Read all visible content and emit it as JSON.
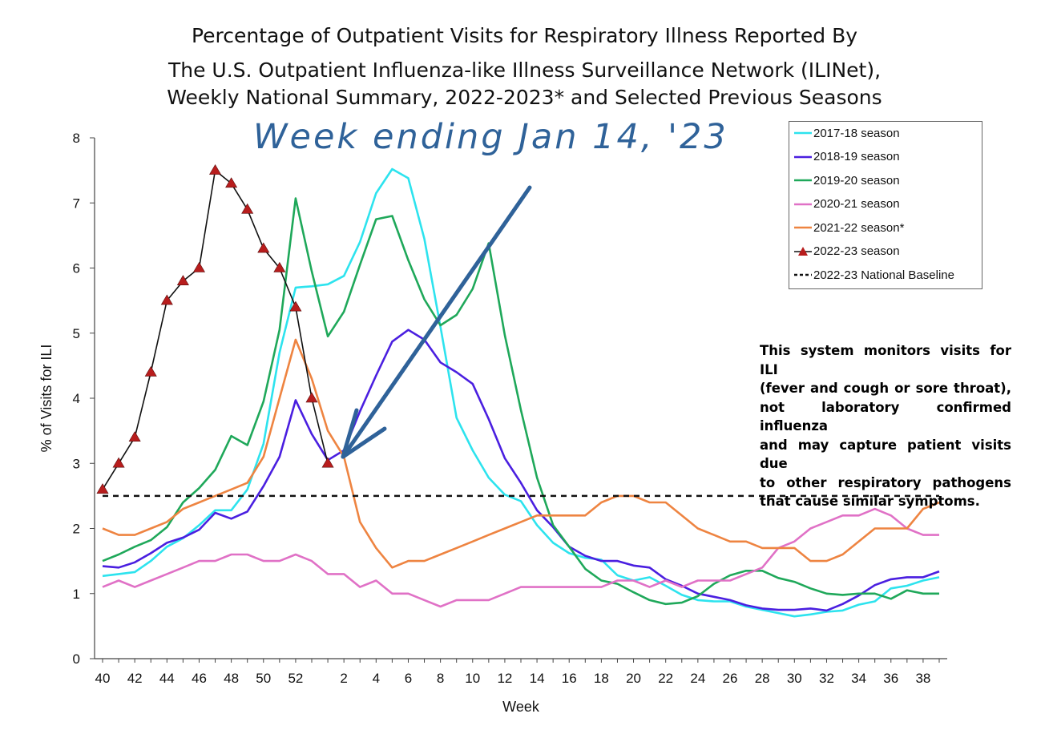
{
  "title_lines": [
    "Percentage of Outpatient Visits for Respiratory Illness Reported By",
    "The U.S. Outpatient Influenza-like Illness Surveillance Network (ILINet),",
    "Weekly National Summary, 2022-2023* and Selected Previous Seasons"
  ],
  "annotation": "Week ending Jan 14, '23",
  "note_lines": [
    "This system monitors visits for ILI",
    "(fever and cough or sore throat),",
    "not laboratory confirmed influenza",
    "and may capture patient visits due",
    "to other respiratory pathogens",
    "that cause similar symptoms."
  ],
  "colors": {
    "s2017": "#2de3ee",
    "s2018": "#4a1fe0",
    "s2019": "#1fa85a",
    "s2020": "#e071c6",
    "s2021": "#ee8441",
    "s2022": "#111111",
    "s2022_marker": "#b81d1d",
    "baseline": "#111111",
    "annotation": "#2f6299"
  },
  "chart_data": {
    "type": "line",
    "title": "Percentage of Outpatient Visits for Respiratory Illness Reported By The U.S. Outpatient Influenza-like Illness Surveillance Network (ILINet), Weekly National Summary, 2022-2023* and Selected Previous Seasons",
    "xlabel": "Week",
    "ylabel": "% of Visits for ILI",
    "ylim": [
      0,
      8
    ],
    "yticks": [
      0,
      1,
      2,
      3,
      4,
      5,
      6,
      7,
      8
    ],
    "x_tick_labels": [
      "40",
      "42",
      "44",
      "46",
      "48",
      "50",
      "52",
      "2",
      "4",
      "6",
      "8",
      "10",
      "12",
      "14",
      "16",
      "18",
      "20",
      "22",
      "24",
      "26",
      "28",
      "30",
      "32",
      "34",
      "36",
      "38"
    ],
    "x_weeks": [
      40,
      41,
      42,
      43,
      44,
      45,
      46,
      47,
      48,
      49,
      50,
      51,
      52,
      53,
      1,
      2,
      3,
      4,
      5,
      6,
      7,
      8,
      9,
      10,
      11,
      12,
      13,
      14,
      15,
      16,
      17,
      18,
      19,
      20,
      21,
      22,
      23,
      24,
      25,
      26,
      27,
      28,
      29,
      30,
      31,
      32,
      33,
      34,
      35,
      36,
      37,
      38,
      39
    ],
    "grid": false,
    "legend_position": "top-right",
    "series": [
      {
        "name": "2017-18 season",
        "color_key": "s2017",
        "values": [
          1.27,
          1.3,
          1.33,
          1.5,
          1.72,
          1.85,
          2.05,
          2.28,
          2.28,
          2.6,
          3.3,
          4.7,
          5.7,
          5.72,
          5.75,
          5.88,
          6.4,
          7.15,
          7.52,
          7.38,
          6.45,
          5.1,
          3.7,
          3.2,
          2.78,
          2.52,
          2.42,
          2.05,
          1.78,
          1.62,
          1.55,
          1.52,
          1.28,
          1.2,
          1.25,
          1.12,
          0.98,
          0.9,
          0.88,
          0.88,
          0.8,
          0.75,
          0.7,
          0.65,
          0.68,
          0.72,
          0.74,
          0.83,
          0.88,
          1.08,
          1.12,
          1.2,
          1.25
        ]
      },
      {
        "name": "2018-19 season",
        "color_key": "s2018",
        "values": [
          1.42,
          1.4,
          1.48,
          1.62,
          1.78,
          1.86,
          1.98,
          2.24,
          2.15,
          2.26,
          2.65,
          3.1,
          3.97,
          3.45,
          3.05,
          3.2,
          3.8,
          4.35,
          4.87,
          5.05,
          4.9,
          4.55,
          4.4,
          4.22,
          3.68,
          3.08,
          2.7,
          2.28,
          2.02,
          1.72,
          1.58,
          1.5,
          1.5,
          1.43,
          1.4,
          1.22,
          1.12,
          1.0,
          0.95,
          0.9,
          0.82,
          0.77,
          0.75,
          0.75,
          0.77,
          0.74,
          0.84,
          0.97,
          1.13,
          1.22,
          1.25,
          1.25,
          1.34
        ]
      },
      {
        "name": "2019-20 season",
        "color_key": "s2019",
        "values": [
          1.5,
          1.6,
          1.72,
          1.82,
          2.02,
          2.4,
          2.62,
          2.9,
          3.42,
          3.28,
          3.95,
          5.05,
          7.07,
          5.95,
          4.95,
          5.33,
          6.05,
          6.75,
          6.8,
          6.12,
          5.52,
          5.12,
          5.28,
          5.68,
          6.38,
          4.97,
          3.82,
          2.78,
          2.05,
          1.72,
          1.38,
          1.2,
          1.15,
          1.02,
          0.9,
          0.84,
          0.86,
          0.96,
          1.15,
          1.28,
          1.35,
          1.35,
          1.24,
          1.18,
          1.08,
          1.0,
          0.98,
          1.0,
          1.0,
          0.92,
          1.05,
          1.0,
          1.0
        ]
      },
      {
        "name": "2020-21 season",
        "color_key": "s2020",
        "values": [
          1.1,
          1.2,
          1.1,
          1.2,
          1.3,
          1.4,
          1.5,
          1.5,
          1.6,
          1.6,
          1.5,
          1.5,
          1.6,
          1.5,
          1.3,
          1.3,
          1.1,
          1.2,
          1.0,
          1.0,
          0.9,
          0.8,
          0.9,
          0.9,
          0.9,
          1.0,
          1.1,
          1.1,
          1.1,
          1.1,
          1.1,
          1.1,
          1.2,
          1.2,
          1.1,
          1.2,
          1.1,
          1.2,
          1.2,
          1.2,
          1.3,
          1.4,
          1.7,
          1.8,
          2.0,
          2.1,
          2.2,
          2.2,
          2.3,
          2.2,
          2.0,
          1.9,
          1.9
        ]
      },
      {
        "name": "2021-22 season*",
        "color_key": "s2021",
        "values": [
          2.0,
          1.9,
          1.9,
          2.0,
          2.1,
          2.3,
          2.4,
          2.5,
          2.6,
          2.7,
          3.1,
          4.0,
          4.9,
          4.3,
          3.5,
          3.1,
          2.1,
          1.7,
          1.4,
          1.5,
          1.5,
          1.6,
          1.7,
          1.8,
          1.9,
          2.0,
          2.1,
          2.2,
          2.2,
          2.2,
          2.2,
          2.4,
          2.5,
          2.5,
          2.4,
          2.4,
          2.2,
          2.0,
          1.9,
          1.8,
          1.8,
          1.7,
          1.7,
          1.7,
          1.5,
          1.5,
          1.6,
          1.8,
          2.0,
          2.0,
          2.0,
          2.3,
          2.4
        ]
      },
      {
        "name": "2022-23 season",
        "color_key": "s2022",
        "marker": "triangle",
        "values": [
          2.6,
          3.0,
          3.4,
          4.4,
          5.5,
          5.8,
          6.0,
          7.5,
          7.3,
          6.9,
          6.3,
          6.0,
          5.4,
          4.0,
          3.0
        ]
      },
      {
        "name": "2022-23 National Baseline",
        "color_key": "baseline",
        "dashed": true,
        "constant": 2.5
      }
    ]
  }
}
